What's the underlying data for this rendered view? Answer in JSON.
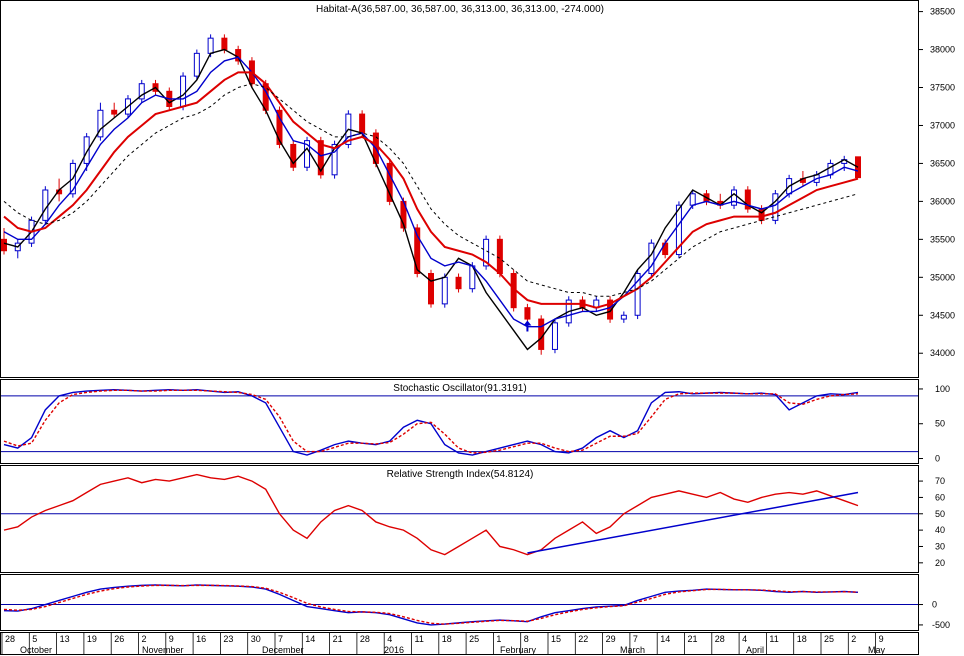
{
  "chart_data": [
    {
      "type": "candlestick",
      "title": "Habitat-A(36,587.00, 36,587.00, 36,313.00, 36,313.00, -274.000)",
      "ylim": [
        33700,
        38600
      ],
      "y_ticks": [
        "38500",
        "38000",
        "37500",
        "37000",
        "36500",
        "36000",
        "35500",
        "35000",
        "34500",
        "34000"
      ],
      "series": [
        {
          "name": "",
          "color": "#000000",
          "values": [
            35450,
            35400,
            35600,
            35900,
            36150,
            36300,
            36650,
            36950,
            37100,
            37250,
            37400,
            37500,
            37300,
            37400,
            37600,
            37950,
            38000,
            37900,
            37500,
            37200,
            36800,
            36500,
            36700,
            36400,
            36700,
            36950,
            36900,
            36500,
            36100,
            35700,
            35100,
            34950,
            35000,
            35250,
            35150,
            34800,
            34550,
            34300,
            34050,
            34200,
            34450,
            34550,
            34600,
            34500,
            34550,
            34800,
            35100,
            35300,
            35650,
            35900,
            36150,
            36050,
            35950,
            36100,
            35950,
            35850,
            36000,
            36200,
            36300,
            36350,
            36450,
            36550,
            36450
          ]
        },
        {
          "name": "",
          "color": "#0000cc",
          "values": [
            35600,
            35500,
            35500,
            35700,
            35950,
            36150,
            36450,
            36750,
            36950,
            37100,
            37300,
            37400,
            37350,
            37350,
            37450,
            37700,
            37850,
            37900,
            37700,
            37450,
            37100,
            36800,
            36750,
            36600,
            36650,
            36850,
            36900,
            36700,
            36350,
            36000,
            35550,
            35250,
            35150,
            35200,
            35150,
            34950,
            34700,
            34450,
            34350,
            34350,
            34450,
            34500,
            34550,
            34550,
            34600,
            34750,
            34950,
            35150,
            35450,
            35700,
            35950,
            36000,
            35950,
            36000,
            35950,
            35900,
            35950,
            36100,
            36200,
            36300,
            36350,
            36450,
            36400
          ]
        },
        {
          "name": "",
          "color": "#dd0000",
          "values": [
            35800,
            35650,
            35600,
            35650,
            35800,
            35950,
            36150,
            36400,
            36650,
            36850,
            37000,
            37150,
            37200,
            37250,
            37300,
            37450,
            37600,
            37700,
            37700,
            37550,
            37300,
            37050,
            36900,
            36750,
            36700,
            36800,
            36850,
            36750,
            36550,
            36300,
            35900,
            35600,
            35400,
            35350,
            35300,
            35200,
            35050,
            34850,
            34700,
            34650,
            34650,
            34650,
            34650,
            34600,
            34650,
            34750,
            34850,
            35000,
            35200,
            35400,
            35600,
            35700,
            35750,
            35800,
            35800,
            35800,
            35850,
            35950,
            36050,
            36150,
            36200,
            36250,
            36300
          ]
        },
        {
          "name": "",
          "color": "#000000",
          "values": [
            36000,
            35850,
            35750,
            35700,
            35750,
            35850,
            36000,
            36200,
            36400,
            36600,
            36750,
            36900,
            37000,
            37100,
            37150,
            37250,
            37400,
            37500,
            37550,
            37500,
            37350,
            37200,
            37050,
            36950,
            36850,
            36850,
            36900,
            36850,
            36700,
            36500,
            36200,
            35900,
            35700,
            35550,
            35450,
            35350,
            35250,
            35100,
            34950,
            34900,
            34850,
            34800,
            34800,
            34750,
            34750,
            34800,
            34850,
            34950,
            35100,
            35250,
            35400,
            35500,
            35600,
            35650,
            35700,
            35750,
            35800,
            35850,
            35900,
            35950,
            36000,
            36050,
            36100
          ]
        }
      ],
      "candles": [
        {
          "o": 35500,
          "h": 35650,
          "l": 35300,
          "c": 35350
        },
        {
          "o": 35350,
          "h": 35500,
          "l": 35250,
          "c": 35450
        },
        {
          "o": 35450,
          "h": 35800,
          "l": 35400,
          "c": 35750
        },
        {
          "o": 35750,
          "h": 36200,
          "l": 35700,
          "c": 36150
        },
        {
          "o": 36150,
          "h": 36300,
          "l": 36000,
          "c": 36100
        },
        {
          "o": 36100,
          "h": 36550,
          "l": 36050,
          "c": 36500
        },
        {
          "o": 36500,
          "h": 36900,
          "l": 36400,
          "c": 36850
        },
        {
          "o": 36850,
          "h": 37300,
          "l": 36800,
          "c": 37200
        },
        {
          "o": 37200,
          "h": 37300,
          "l": 37100,
          "c": 37150
        },
        {
          "o": 37150,
          "h": 37400,
          "l": 37100,
          "c": 37350
        },
        {
          "o": 37350,
          "h": 37600,
          "l": 37300,
          "c": 37550
        },
        {
          "o": 37550,
          "h": 37600,
          "l": 37400,
          "c": 37450
        },
        {
          "o": 37450,
          "h": 37500,
          "l": 37200,
          "c": 37250
        },
        {
          "o": 37250,
          "h": 37700,
          "l": 37200,
          "c": 37650
        },
        {
          "o": 37650,
          "h": 38000,
          "l": 37600,
          "c": 37950
        },
        {
          "o": 37950,
          "h": 38200,
          "l": 37900,
          "c": 38150
        },
        {
          "o": 38150,
          "h": 38200,
          "l": 37950,
          "c": 38000
        },
        {
          "o": 38000,
          "h": 38050,
          "l": 37800,
          "c": 37850
        },
        {
          "o": 37850,
          "h": 37900,
          "l": 37500,
          "c": 37550
        },
        {
          "o": 37550,
          "h": 37600,
          "l": 37150,
          "c": 37200
        },
        {
          "o": 37200,
          "h": 37250,
          "l": 36700,
          "c": 36750
        },
        {
          "o": 36750,
          "h": 36800,
          "l": 36400,
          "c": 36450
        },
        {
          "o": 36450,
          "h": 36850,
          "l": 36400,
          "c": 36800
        },
        {
          "o": 36800,
          "h": 36850,
          "l": 36300,
          "c": 36350
        },
        {
          "o": 36350,
          "h": 36800,
          "l": 36300,
          "c": 36750
        },
        {
          "o": 36750,
          "h": 37200,
          "l": 36700,
          "c": 37150
        },
        {
          "o": 37150,
          "h": 37200,
          "l": 36850,
          "c": 36900
        },
        {
          "o": 36900,
          "h": 36950,
          "l": 36450,
          "c": 36500
        },
        {
          "o": 36500,
          "h": 36550,
          "l": 35950,
          "c": 36000
        },
        {
          "o": 36000,
          "h": 36050,
          "l": 35600,
          "c": 35650
        },
        {
          "o": 35650,
          "h": 35700,
          "l": 35000,
          "c": 35050
        },
        {
          "o": 35050,
          "h": 35100,
          "l": 34600,
          "c": 34650
        },
        {
          "o": 34650,
          "h": 35050,
          "l": 34600,
          "c": 35000
        },
        {
          "o": 35000,
          "h": 35050,
          "l": 34800,
          "c": 34850
        },
        {
          "o": 34850,
          "h": 35200,
          "l": 34800,
          "c": 35150
        },
        {
          "o": 35150,
          "h": 35550,
          "l": 35100,
          "c": 35500
        },
        {
          "o": 35500,
          "h": 35550,
          "l": 35000,
          "c": 35050
        },
        {
          "o": 35050,
          "h": 35100,
          "l": 34550,
          "c": 34600
        },
        {
          "o": 34600,
          "h": 34650,
          "l": 34400,
          "c": 34450
        },
        {
          "o": 34450,
          "h": 34500,
          "l": 33980,
          "c": 34050
        },
        {
          "o": 34050,
          "h": 34450,
          "l": 34000,
          "c": 34400
        },
        {
          "o": 34400,
          "h": 34750,
          "l": 34350,
          "c": 34700
        },
        {
          "o": 34700,
          "h": 34750,
          "l": 34550,
          "c": 34600
        },
        {
          "o": 34600,
          "h": 34750,
          "l": 34550,
          "c": 34700
        },
        {
          "o": 34700,
          "h": 34750,
          "l": 34400,
          "c": 34450
        },
        {
          "o": 34450,
          "h": 34550,
          "l": 34400,
          "c": 34500
        },
        {
          "o": 34500,
          "h": 35100,
          "l": 34450,
          "c": 35050
        },
        {
          "o": 35050,
          "h": 35500,
          "l": 35000,
          "c": 35450
        },
        {
          "o": 35450,
          "h": 35500,
          "l": 35250,
          "c": 35300
        },
        {
          "o": 35300,
          "h": 36000,
          "l": 35250,
          "c": 35950
        },
        {
          "o": 35950,
          "h": 36150,
          "l": 35900,
          "c": 36100
        },
        {
          "o": 36100,
          "h": 36150,
          "l": 35950,
          "c": 36000
        },
        {
          "o": 36000,
          "h": 36100,
          "l": 35900,
          "c": 35950
        },
        {
          "o": 35950,
          "h": 36200,
          "l": 35900,
          "c": 36150
        },
        {
          "o": 36150,
          "h": 36200,
          "l": 35850,
          "c": 35900
        },
        {
          "o": 35900,
          "h": 35950,
          "l": 35700,
          "c": 35750
        },
        {
          "o": 35750,
          "h": 36150,
          "l": 35700,
          "c": 36100
        },
        {
          "o": 36100,
          "h": 36350,
          "l": 36050,
          "c": 36300
        },
        {
          "o": 36300,
          "h": 36400,
          "l": 36200,
          "c": 36250
        },
        {
          "o": 36250,
          "h": 36400,
          "l": 36200,
          "c": 36350
        },
        {
          "o": 36350,
          "h": 36550,
          "l": 36300,
          "c": 36500
        },
        {
          "o": 36500,
          "h": 36600,
          "l": 36400,
          "c": 36550
        },
        {
          "o": 36587,
          "h": 36587,
          "l": 36313,
          "c": 36313
        }
      ]
    },
    {
      "type": "line",
      "title": "Stochastic Oscillator(91.3191)",
      "ylim": [
        -5,
        110
      ],
      "y_ticks": [
        "100",
        "50",
        "0"
      ],
      "levels": [
        90,
        10
      ],
      "series": [
        {
          "name": "",
          "color": "#0000cc",
          "values": [
            20,
            15,
            30,
            70,
            90,
            95,
            97,
            98,
            99,
            98,
            97,
            98,
            99,
            98,
            99,
            97,
            95,
            96,
            90,
            80,
            45,
            10,
            5,
            12,
            20,
            25,
            22,
            20,
            25,
            45,
            55,
            50,
            20,
            8,
            5,
            10,
            15,
            20,
            25,
            20,
            10,
            8,
            15,
            30,
            40,
            30,
            40,
            80,
            95,
            96,
            93,
            94,
            95,
            94,
            93,
            94,
            92,
            70,
            80,
            90,
            93,
            92,
            95
          ]
        },
        {
          "name": "",
          "color": "#dd0000",
          "values": [
            25,
            18,
            22,
            55,
            80,
            92,
            95,
            97,
            98,
            98,
            97,
            97,
            98,
            98,
            98,
            97,
            96,
            95,
            92,
            85,
            60,
            25,
            10,
            10,
            16,
            22,
            22,
            21,
            23,
            35,
            50,
            52,
            35,
            15,
            8,
            9,
            12,
            17,
            22,
            22,
            15,
            10,
            12,
            22,
            32,
            32,
            36,
            60,
            85,
            93,
            94,
            94,
            94,
            94,
            93,
            93,
            93,
            80,
            78,
            85,
            90,
            92,
            93
          ]
        }
      ]
    },
    {
      "type": "line",
      "title": "Relative Strength Index(54.8124)",
      "ylim": [
        15,
        78
      ],
      "y_ticks": [
        "70",
        "60",
        "50",
        "40",
        "30",
        "20"
      ],
      "levels": [
        50
      ],
      "series": [
        {
          "name": "",
          "color": "#dd0000",
          "values": [
            40,
            42,
            48,
            52,
            55,
            58,
            63,
            68,
            70,
            72,
            69,
            71,
            70,
            72,
            74,
            72,
            71,
            73,
            70,
            65,
            50,
            40,
            35,
            45,
            52,
            55,
            52,
            45,
            42,
            40,
            35,
            28,
            25,
            30,
            35,
            40,
            30,
            28,
            25,
            28,
            35,
            40,
            45,
            38,
            42,
            50,
            55,
            60,
            62,
            64,
            62,
            60,
            63,
            59,
            57,
            60,
            62,
            63,
            62,
            64,
            61,
            58,
            55
          ]
        }
      ],
      "trendline": {
        "color": "#0000cc",
        "from": [
          38,
          26
        ],
        "to": [
          62,
          63
        ]
      }
    },
    {
      "type": "line",
      "title": "",
      "ylim": [
        -600,
        700
      ],
      "y_ticks": [
        "0",
        "-500"
      ],
      "levels": [
        0
      ],
      "series": [
        {
          "name": "",
          "color": "#0000cc",
          "values": [
            -150,
            -160,
            -100,
            0,
            100,
            200,
            300,
            380,
            420,
            450,
            470,
            480,
            470,
            460,
            480,
            470,
            460,
            450,
            430,
            380,
            250,
            100,
            -50,
            -100,
            -150,
            -200,
            -180,
            -200,
            -250,
            -350,
            -450,
            -500,
            -480,
            -450,
            -420,
            -400,
            -380,
            -400,
            -420,
            -300,
            -200,
            -150,
            -100,
            -60,
            -40,
            -20,
            100,
            200,
            300,
            330,
            350,
            380,
            370,
            360,
            360,
            350,
            320,
            300,
            320,
            300,
            310,
            320,
            300
          ]
        },
        {
          "name": "",
          "color": "#dd0000",
          "values": [
            -120,
            -140,
            -120,
            -50,
            50,
            150,
            250,
            330,
            390,
            430,
            455,
            470,
            470,
            465,
            470,
            470,
            465,
            455,
            440,
            400,
            300,
            170,
            30,
            -60,
            -120,
            -170,
            -180,
            -190,
            -220,
            -300,
            -390,
            -460,
            -480,
            -460,
            -435,
            -410,
            -390,
            -395,
            -410,
            -340,
            -250,
            -180,
            -120,
            -80,
            -50,
            -30,
            60,
            150,
            250,
            310,
            340,
            370,
            370,
            365,
            360,
            355,
            335,
            315,
            318,
            308,
            308,
            314,
            305
          ]
        }
      ]
    }
  ],
  "x_axis": {
    "day_labels": [
      "28",
      "5",
      "13",
      "19",
      "26",
      "2",
      "9",
      "16",
      "23",
      "30",
      "7",
      "14",
      "21",
      "28",
      "4",
      "11",
      "18",
      "25",
      "1",
      "8",
      "15",
      "22",
      "29",
      "7",
      "14",
      "21",
      "28",
      "4",
      "11",
      "18",
      "25",
      "2",
      "9"
    ],
    "month_labels": [
      "October",
      "November",
      "December",
      "2016",
      "February",
      "March",
      "April",
      "May"
    ]
  }
}
